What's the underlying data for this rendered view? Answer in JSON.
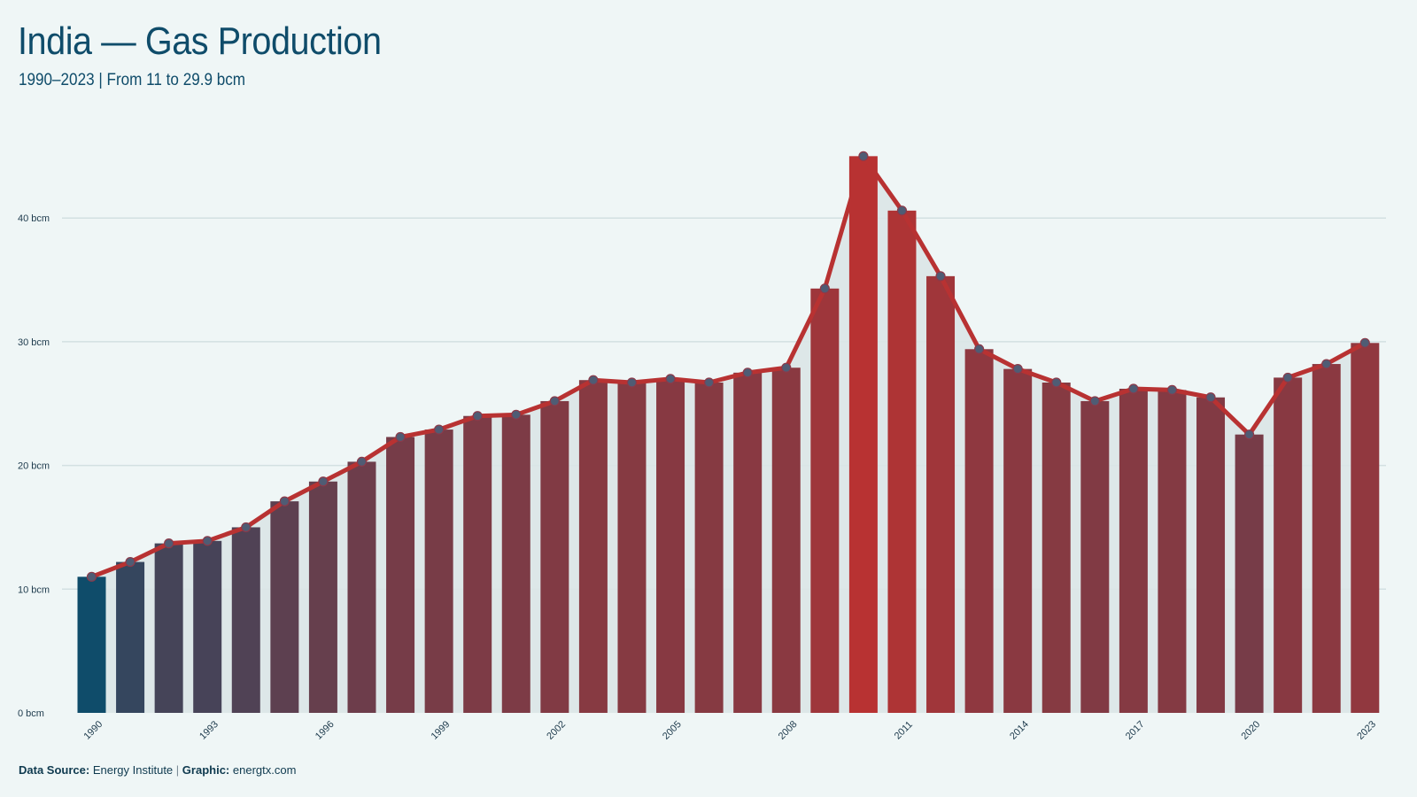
{
  "header": {
    "title": "India — Gas Production",
    "subtitle": "1990–2023 | From 11 to 29.9 bcm"
  },
  "footer": {
    "source_label": "Data Source:",
    "source_value": "Energy Institute",
    "separator": "|",
    "graphic_label": "Graphic:",
    "graphic_value": "energtx.com"
  },
  "colors": {
    "background": "#eff6f6",
    "low": "#0f4c6a",
    "high": "#b83232",
    "line": "#b83232",
    "point_fill": "#4f5c74",
    "gridline": "#d3e0e2",
    "area": "#dae5e7"
  },
  "chart_data": {
    "type": "bar",
    "x": [
      1990,
      1991,
      1992,
      1993,
      1994,
      1995,
      1996,
      1997,
      1998,
      1999,
      2000,
      2001,
      2002,
      2003,
      2004,
      2005,
      2006,
      2007,
      2008,
      2009,
      2010,
      2011,
      2012,
      2013,
      2014,
      2015,
      2016,
      2017,
      2018,
      2019,
      2020,
      2021,
      2022,
      2023
    ],
    "values": [
      11.0,
      12.2,
      13.7,
      13.9,
      15.0,
      17.1,
      18.7,
      20.3,
      22.3,
      22.9,
      24.0,
      24.1,
      25.2,
      26.9,
      26.7,
      27.0,
      26.7,
      27.5,
      27.9,
      34.3,
      45.0,
      40.6,
      35.3,
      29.4,
      27.8,
      26.7,
      25.2,
      26.2,
      26.1,
      25.5,
      22.5,
      27.1,
      28.2,
      29.9
    ],
    "x_tick_labels": [
      "1990",
      "1993",
      "1996",
      "1999",
      "2002",
      "2005",
      "2008",
      "2011",
      "2014",
      "2017",
      "2020",
      "2023"
    ],
    "y_ticks": [
      0,
      10,
      20,
      30,
      40
    ],
    "y_tick_labels": [
      "0 bcm",
      "10 bcm",
      "20 bcm",
      "30 bcm",
      "40 bcm"
    ],
    "ylim": [
      0,
      49
    ],
    "grid": true,
    "overlay": "line-with-markers",
    "xlabel": "",
    "ylabel": ""
  }
}
